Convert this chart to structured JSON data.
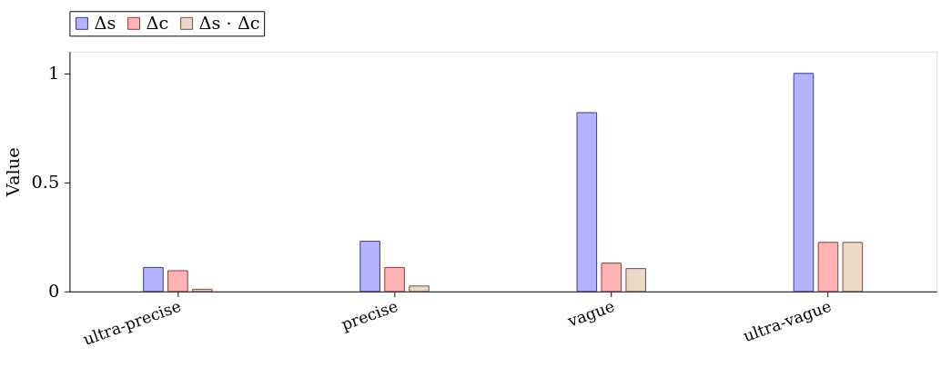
{
  "chart_data": {
    "type": "bar",
    "ylabel": "Value",
    "categories": [
      "ultra-precise",
      "precise",
      "vague",
      "ultra-vague"
    ],
    "series": [
      {
        "name": "Δs",
        "color": "#b3b3ff",
        "values": [
          0.11,
          0.23,
          0.82,
          1.0
        ]
      },
      {
        "name": "Δc",
        "color": "#ffb3b3",
        "values": [
          0.095,
          0.11,
          0.13,
          0.225
        ]
      },
      {
        "name": "Δs · Δc",
        "color": "#ead9c6",
        "values": [
          0.01,
          0.025,
          0.105,
          0.225
        ]
      }
    ],
    "ylim": [
      0,
      1.1
    ],
    "yticks": [
      0,
      0.5,
      1
    ],
    "legend": "top",
    "grid": false
  }
}
